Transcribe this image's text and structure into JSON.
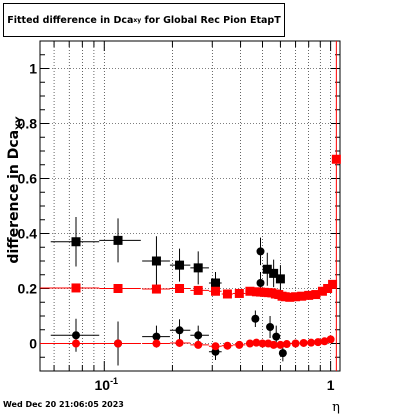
{
  "chart_data": {
    "type": "scatter",
    "title_main": "Fitted difference in Dca",
    "title_sub": "xy",
    "title_rest": " for Global Rec Pion EtapT",
    "xlabel": "η",
    "ylabel_main": "difference in Dca",
    "ylabel_sub": "XY",
    "x_scale": "log",
    "xlim": [
      0.052,
      1.1
    ],
    "ylim": [
      -0.1,
      1.1
    ],
    "x_ticks": [
      {
        "v": 0.1,
        "base": "10",
        "exp": "-1"
      },
      {
        "v": 1,
        "base": "1",
        "exp": ""
      }
    ],
    "y_ticks": [
      {
        "v": 0,
        "label": "0"
      },
      {
        "v": 0.2,
        "label": "0.2"
      },
      {
        "v": 0.4,
        "label": "0.4"
      },
      {
        "v": 0.6,
        "label": "0.6"
      },
      {
        "v": 0.8,
        "label": "0.8"
      },
      {
        "v": 1.0,
        "label": "1"
      }
    ],
    "grid": true,
    "series": [
      {
        "marker": "square",
        "color": "#000000",
        "points": [
          {
            "x": 0.075,
            "y": 0.37,
            "xlo": 0.058,
            "xhi": 0.095,
            "err": 0.09
          },
          {
            "x": 0.115,
            "y": 0.375,
            "xlo": 0.095,
            "xhi": 0.145,
            "err": 0.08
          },
          {
            "x": 0.17,
            "y": 0.3,
            "xlo": 0.147,
            "xhi": 0.195,
            "err": 0.09
          },
          {
            "x": 0.215,
            "y": 0.285,
            "xlo": 0.195,
            "xhi": 0.24,
            "err": 0.06
          },
          {
            "x": 0.26,
            "y": 0.275,
            "xlo": 0.24,
            "xhi": 0.29,
            "err": 0.06
          },
          {
            "x": 0.31,
            "y": 0.22,
            "xlo": 0.29,
            "xhi": 0.33,
            "err": 0.04
          },
          {
            "x": 0.525,
            "y": 0.27,
            "xlo": 0.505,
            "xhi": 0.545,
            "err": 0.06
          },
          {
            "x": 0.56,
            "y": 0.255,
            "xlo": 0.545,
            "xhi": 0.575,
            "err": 0.05
          },
          {
            "x": 0.6,
            "y": 0.235,
            "xlo": 0.585,
            "xhi": 0.615,
            "err": 0.05
          }
        ]
      },
      {
        "marker": "circle",
        "color": "#000000",
        "points": [
          {
            "x": 0.075,
            "y": 0.03,
            "xlo": 0.058,
            "xhi": 0.095,
            "err": 0.06
          },
          {
            "x": 0.115,
            "y": 0.0,
            "xlo": 0.095,
            "xhi": 0.145,
            "err": 0.08
          },
          {
            "x": 0.17,
            "y": 0.025,
            "xlo": 0.147,
            "xhi": 0.195,
            "err": 0.04
          },
          {
            "x": 0.215,
            "y": 0.048,
            "xlo": 0.195,
            "xhi": 0.24,
            "err": 0.04
          },
          {
            "x": 0.26,
            "y": 0.03,
            "xlo": 0.24,
            "xhi": 0.29,
            "err": 0.035
          },
          {
            "x": 0.31,
            "y": -0.03,
            "xlo": 0.29,
            "xhi": 0.33,
            "err": 0.03
          },
          {
            "x": 0.465,
            "y": 0.09,
            "xlo": 0.45,
            "xhi": 0.48,
            "err": 0.03
          },
          {
            "x": 0.49,
            "y": 0.22,
            "xlo": 0.48,
            "xhi": 0.505,
            "err": 0.04
          },
          {
            "x": 0.49,
            "y": 0.335,
            "xlo": 0.48,
            "xhi": 0.505,
            "err": 0.05
          },
          {
            "x": 0.54,
            "y": 0.06,
            "xlo": 0.525,
            "xhi": 0.555,
            "err": 0.04
          },
          {
            "x": 0.575,
            "y": 0.025,
            "xlo": 0.56,
            "xhi": 0.59,
            "err": 0.04
          },
          {
            "x": 0.615,
            "y": -0.035,
            "xlo": 0.6,
            "xhi": 0.63,
            "err": 0.03
          }
        ]
      },
      {
        "marker": "square",
        "color": "#ff0000",
        "points": [
          {
            "x": 0.075,
            "y": 0.202,
            "xlo": 0.052,
            "xhi": 0.095,
            "err": 0.006
          },
          {
            "x": 0.115,
            "y": 0.2,
            "xlo": 0.095,
            "xhi": 0.145,
            "err": 0.006
          },
          {
            "x": 0.17,
            "y": 0.198,
            "xlo": 0.147,
            "xhi": 0.195,
            "err": 0.006
          },
          {
            "x": 0.215,
            "y": 0.2,
            "xlo": 0.195,
            "xhi": 0.24,
            "err": 0.006
          },
          {
            "x": 0.26,
            "y": 0.193,
            "xlo": 0.24,
            "xhi": 0.29,
            "err": 0.006
          },
          {
            "x": 0.31,
            "y": 0.19,
            "xlo": 0.29,
            "xhi": 0.33,
            "err": 0.006
          },
          {
            "x": 0.35,
            "y": 0.18,
            "xlo": 0.33,
            "xhi": 0.37,
            "err": 0.006
          },
          {
            "x": 0.395,
            "y": 0.182,
            "xlo": 0.37,
            "xhi": 0.42,
            "err": 0.006
          },
          {
            "x": 0.44,
            "y": 0.19,
            "xlo": 0.42,
            "xhi": 0.46,
            "err": 0.006
          },
          {
            "x": 0.47,
            "y": 0.188,
            "xlo": 0.46,
            "xhi": 0.48,
            "err": 0.006
          },
          {
            "x": 0.49,
            "y": 0.187,
            "xlo": 0.48,
            "xhi": 0.5,
            "err": 0.006
          },
          {
            "x": 0.51,
            "y": 0.186,
            "xlo": 0.5,
            "xhi": 0.52,
            "err": 0.006
          },
          {
            "x": 0.53,
            "y": 0.185,
            "xlo": 0.52,
            "xhi": 0.54,
            "err": 0.006
          },
          {
            "x": 0.55,
            "y": 0.184,
            "xlo": 0.54,
            "xhi": 0.56,
            "err": 0.006
          },
          {
            "x": 0.57,
            "y": 0.18,
            "xlo": 0.56,
            "xhi": 0.58,
            "err": 0.006
          },
          {
            "x": 0.59,
            "y": 0.178,
            "xlo": 0.58,
            "xhi": 0.6,
            "err": 0.006
          },
          {
            "x": 0.61,
            "y": 0.172,
            "xlo": 0.6,
            "xhi": 0.62,
            "err": 0.006
          },
          {
            "x": 0.63,
            "y": 0.17,
            "xlo": 0.62,
            "xhi": 0.64,
            "err": 0.006
          },
          {
            "x": 0.66,
            "y": 0.168,
            "xlo": 0.64,
            "xhi": 0.68,
            "err": 0.006
          },
          {
            "x": 0.7,
            "y": 0.17,
            "xlo": 0.68,
            "xhi": 0.72,
            "err": 0.006
          },
          {
            "x": 0.745,
            "y": 0.172,
            "xlo": 0.72,
            "xhi": 0.77,
            "err": 0.006
          },
          {
            "x": 0.8,
            "y": 0.175,
            "xlo": 0.77,
            "xhi": 0.83,
            "err": 0.006
          },
          {
            "x": 0.86,
            "y": 0.178,
            "xlo": 0.83,
            "xhi": 0.89,
            "err": 0.006
          },
          {
            "x": 0.92,
            "y": 0.19,
            "xlo": 0.89,
            "xhi": 0.95,
            "err": 0.006
          },
          {
            "x": 0.97,
            "y": 0.2,
            "xlo": 0.95,
            "xhi": 0.99,
            "err": 0.006
          },
          {
            "x": 1.02,
            "y": 0.215,
            "xlo": 0.99,
            "xhi": 1.04,
            "err": 0.006
          },
          {
            "x": 1.06,
            "y": 0.67,
            "xlo": 1.04,
            "xhi": 1.08,
            "err": 1.0
          }
        ]
      },
      {
        "marker": "circle",
        "color": "#ff0000",
        "points": [
          {
            "x": 0.075,
            "y": 0.0,
            "xlo": 0.052,
            "xhi": 0.095,
            "err": 0.004
          },
          {
            "x": 0.115,
            "y": 0.0,
            "xlo": 0.095,
            "xhi": 0.145,
            "err": 0.004
          },
          {
            "x": 0.17,
            "y": 0.0,
            "xlo": 0.147,
            "xhi": 0.195,
            "err": 0.004
          },
          {
            "x": 0.215,
            "y": 0.002,
            "xlo": 0.195,
            "xhi": 0.24,
            "err": 0.004
          },
          {
            "x": 0.26,
            "y": -0.005,
            "xlo": 0.24,
            "xhi": 0.29,
            "err": 0.004
          },
          {
            "x": 0.31,
            "y": -0.01,
            "xlo": 0.29,
            "xhi": 0.33,
            "err": 0.004
          },
          {
            "x": 0.35,
            "y": -0.008,
            "xlo": 0.33,
            "xhi": 0.37,
            "err": 0.004
          },
          {
            "x": 0.395,
            "y": -0.005,
            "xlo": 0.37,
            "xhi": 0.42,
            "err": 0.004
          },
          {
            "x": 0.44,
            "y": 0.0,
            "xlo": 0.42,
            "xhi": 0.46,
            "err": 0.004
          },
          {
            "x": 0.47,
            "y": 0.003,
            "xlo": 0.46,
            "xhi": 0.48,
            "err": 0.004
          },
          {
            "x": 0.5,
            "y": 0.0,
            "xlo": 0.48,
            "xhi": 0.52,
            "err": 0.004
          },
          {
            "x": 0.53,
            "y": 0.0,
            "xlo": 0.52,
            "xhi": 0.54,
            "err": 0.004
          },
          {
            "x": 0.56,
            "y": -0.005,
            "xlo": 0.54,
            "xhi": 0.58,
            "err": 0.004
          },
          {
            "x": 0.6,
            "y": -0.005,
            "xlo": 0.58,
            "xhi": 0.62,
            "err": 0.004
          },
          {
            "x": 0.64,
            "y": -0.002,
            "xlo": 0.62,
            "xhi": 0.66,
            "err": 0.004
          },
          {
            "x": 0.7,
            "y": 0.0,
            "xlo": 0.66,
            "xhi": 0.73,
            "err": 0.004
          },
          {
            "x": 0.76,
            "y": 0.002,
            "xlo": 0.73,
            "xhi": 0.79,
            "err": 0.004
          },
          {
            "x": 0.82,
            "y": 0.003,
            "xlo": 0.79,
            "xhi": 0.85,
            "err": 0.004
          },
          {
            "x": 0.88,
            "y": 0.005,
            "xlo": 0.85,
            "xhi": 0.91,
            "err": 0.004
          },
          {
            "x": 0.94,
            "y": 0.008,
            "xlo": 0.91,
            "xhi": 0.97,
            "err": 0.004
          },
          {
            "x": 1.0,
            "y": 0.015,
            "xlo": 0.97,
            "xhi": 1.03,
            "err": 0.004
          }
        ]
      }
    ]
  },
  "footer": "Wed Dec 20 21:06:05 2023"
}
